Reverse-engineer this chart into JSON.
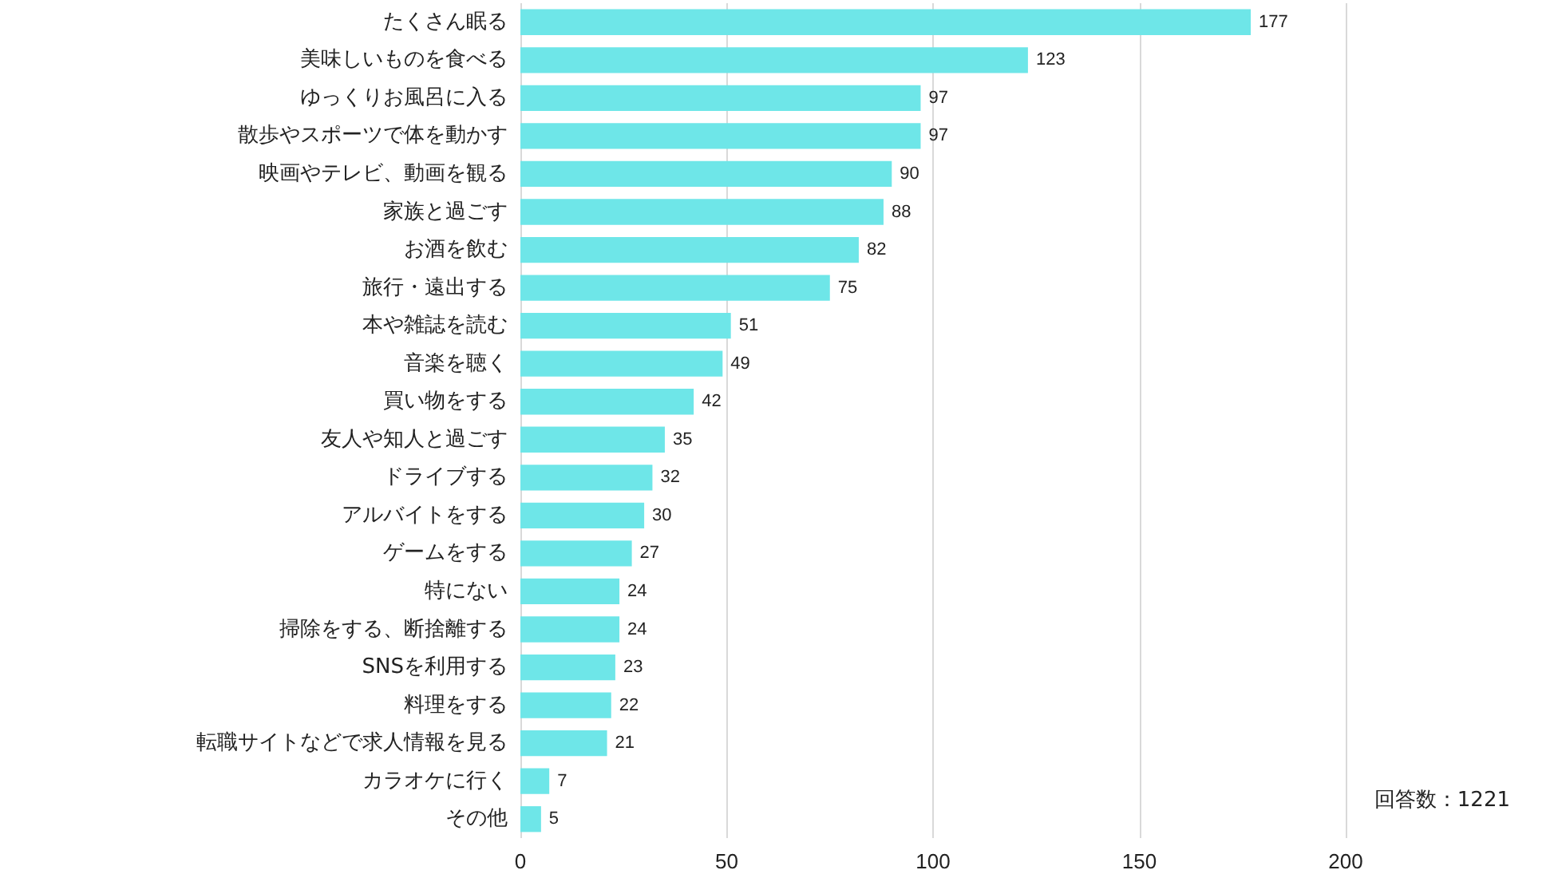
{
  "chart_data": {
    "type": "bar",
    "orientation": "horizontal",
    "categories": [
      "たくさん眠る",
      "美味しいものを食べる",
      "ゆっくりお風呂に入る",
      "散歩やスポーツで体を動かす",
      "映画やテレビ、動画を観る",
      "家族と過ごす",
      "お酒を飲む",
      "旅行・遠出する",
      "本や雑誌を読む",
      "音楽を聴く",
      "買い物をする",
      "友人や知人と過ごす",
      "ドライブする",
      "アルバイトをする",
      "ゲームをする",
      "特にない",
      "掃除をする、断捨離する",
      "SNSを利用する",
      "料理をする",
      "転職サイトなどで求人情報を見る",
      "カラオケに行く",
      "その他"
    ],
    "values": [
      177,
      123,
      97,
      97,
      90,
      88,
      82,
      75,
      51,
      49,
      42,
      35,
      32,
      30,
      27,
      24,
      24,
      23,
      22,
      21,
      7,
      5
    ],
    "color": "#6ee6e8",
    "xlim": [
      0,
      200
    ],
    "xticks": [
      0,
      50,
      100,
      150,
      200
    ],
    "grid": "x",
    "data_labels": true,
    "annotations": [
      "回答数：1221"
    ]
  }
}
